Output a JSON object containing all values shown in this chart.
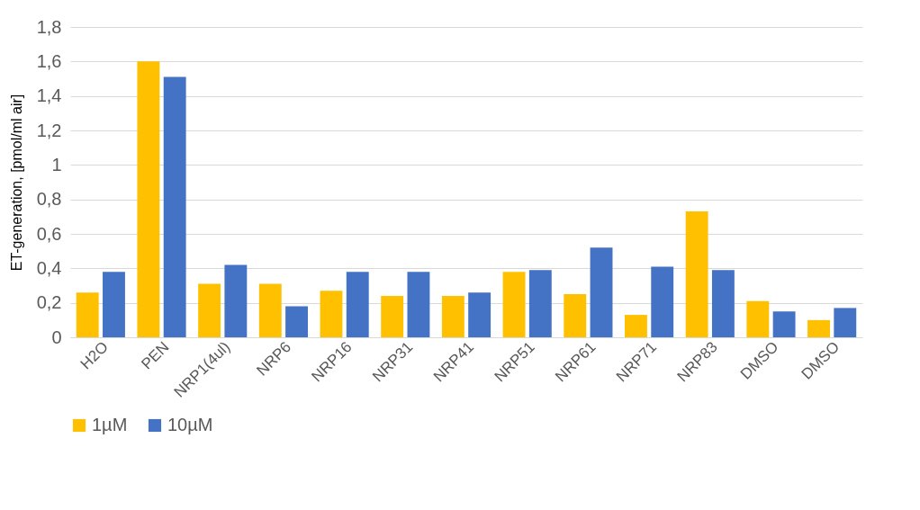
{
  "chart_data": {
    "type": "bar",
    "ylabel": "ET-generation, [pmol/ml air]",
    "categories": [
      "H2O",
      "PEN",
      "NRP1(4ul)",
      "NRP6",
      "NRP16",
      "NRP31",
      "NRP41",
      "NRP51",
      "NRP61",
      "NRP71",
      "NRP83",
      "DMSO",
      "DMSO"
    ],
    "series": [
      {
        "name": "1µM",
        "color": "#ffc000",
        "values": [
          0.26,
          1.6,
          0.31,
          0.31,
          0.27,
          0.24,
          0.24,
          0.38,
          0.25,
          0.13,
          0.73,
          0.21,
          0.1
        ]
      },
      {
        "name": "10µM",
        "color": "#4472c4",
        "values": [
          0.38,
          1.51,
          0.42,
          0.18,
          0.38,
          0.38,
          0.26,
          0.39,
          0.52,
          0.41,
          0.39,
          0.15,
          0.17
        ]
      }
    ],
    "ylim": [
      0,
      1.8
    ],
    "yticks": [
      0,
      {
        "value": 0.2,
        "label": "0,2"
      },
      {
        "value": 0.4,
        "label": "0,4"
      },
      {
        "value": 0.6,
        "label": "0,6"
      },
      {
        "value": 0.8,
        "label": "0,8"
      },
      1,
      {
        "value": 1.2,
        "label": "1,2"
      },
      {
        "value": 1.4,
        "label": "1,4"
      },
      {
        "value": 1.6,
        "label": "1,6"
      },
      {
        "value": 1.8,
        "label": "1,8"
      }
    ],
    "grid": "y",
    "legend": "bottom"
  }
}
